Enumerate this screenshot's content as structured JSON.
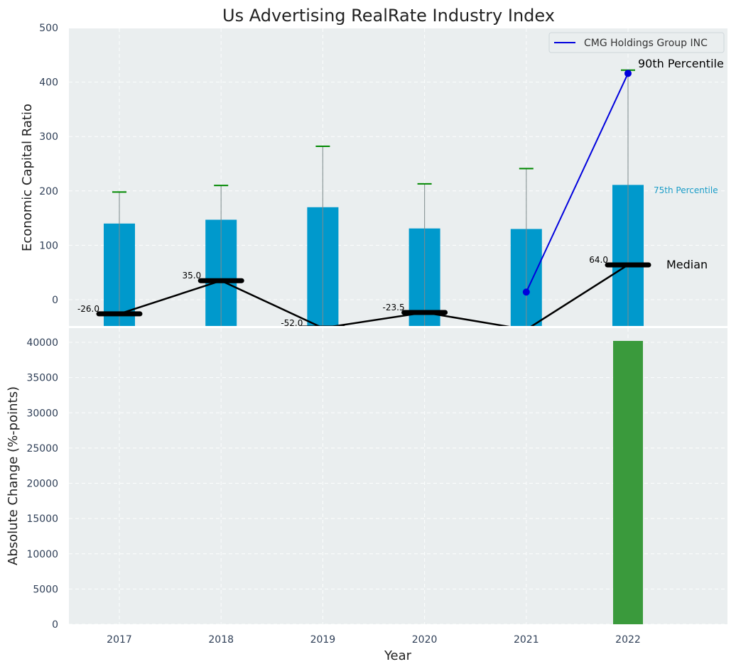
{
  "chart_data": [
    {
      "type": "bar",
      "title": "Us Advertising RealRate Industry Index",
      "ylabel": "Economic Capital Ratio",
      "ylim": [
        -50,
        500
      ],
      "yticks": [
        0,
        100,
        200,
        300,
        400,
        500
      ],
      "categories": [
        "2017",
        "2018",
        "2019",
        "2020",
        "2021",
        "2022"
      ],
      "bar_series": {
        "name": "75th Percentile",
        "color": "#0099cc",
        "values": [
          140,
          147,
          170,
          131,
          130,
          211
        ]
      },
      "whisker_series": {
        "name": "90th Percentile",
        "color": "#008800",
        "values": [
          198,
          210,
          282,
          213,
          241,
          422
        ]
      },
      "median_series": {
        "name": "Median",
        "values": [
          -26.0,
          35.0,
          -52.0,
          -23.5,
          -55.0,
          64.0
        ],
        "labels": [
          "-26.0",
          "35.0",
          "-52.0",
          "-23.5",
          "",
          "64.0"
        ]
      },
      "company_series": {
        "name": "CMG Holdings Group INC",
        "color": "#0000dd",
        "x": [
          "2021",
          "2022"
        ],
        "values": [
          14,
          416
        ]
      },
      "annotations": {
        "p90": "90th Percentile",
        "p75": "75th Percentile",
        "median": "Median"
      },
      "legend": [
        "CMG Holdings Group INC"
      ],
      "legend_position": "top-right"
    },
    {
      "type": "bar",
      "xlabel": "Year",
      "ylabel": "Absolute Change (%-points)",
      "ylim": [
        0,
        42000
      ],
      "yticks": [
        0,
        5000,
        10000,
        15000,
        20000,
        25000,
        30000,
        35000,
        40000
      ],
      "categories": [
        "2017",
        "2018",
        "2019",
        "2020",
        "2021",
        "2022"
      ],
      "values": [
        0,
        0,
        0,
        0,
        0,
        40200
      ],
      "color": "#3a9a3c"
    }
  ]
}
